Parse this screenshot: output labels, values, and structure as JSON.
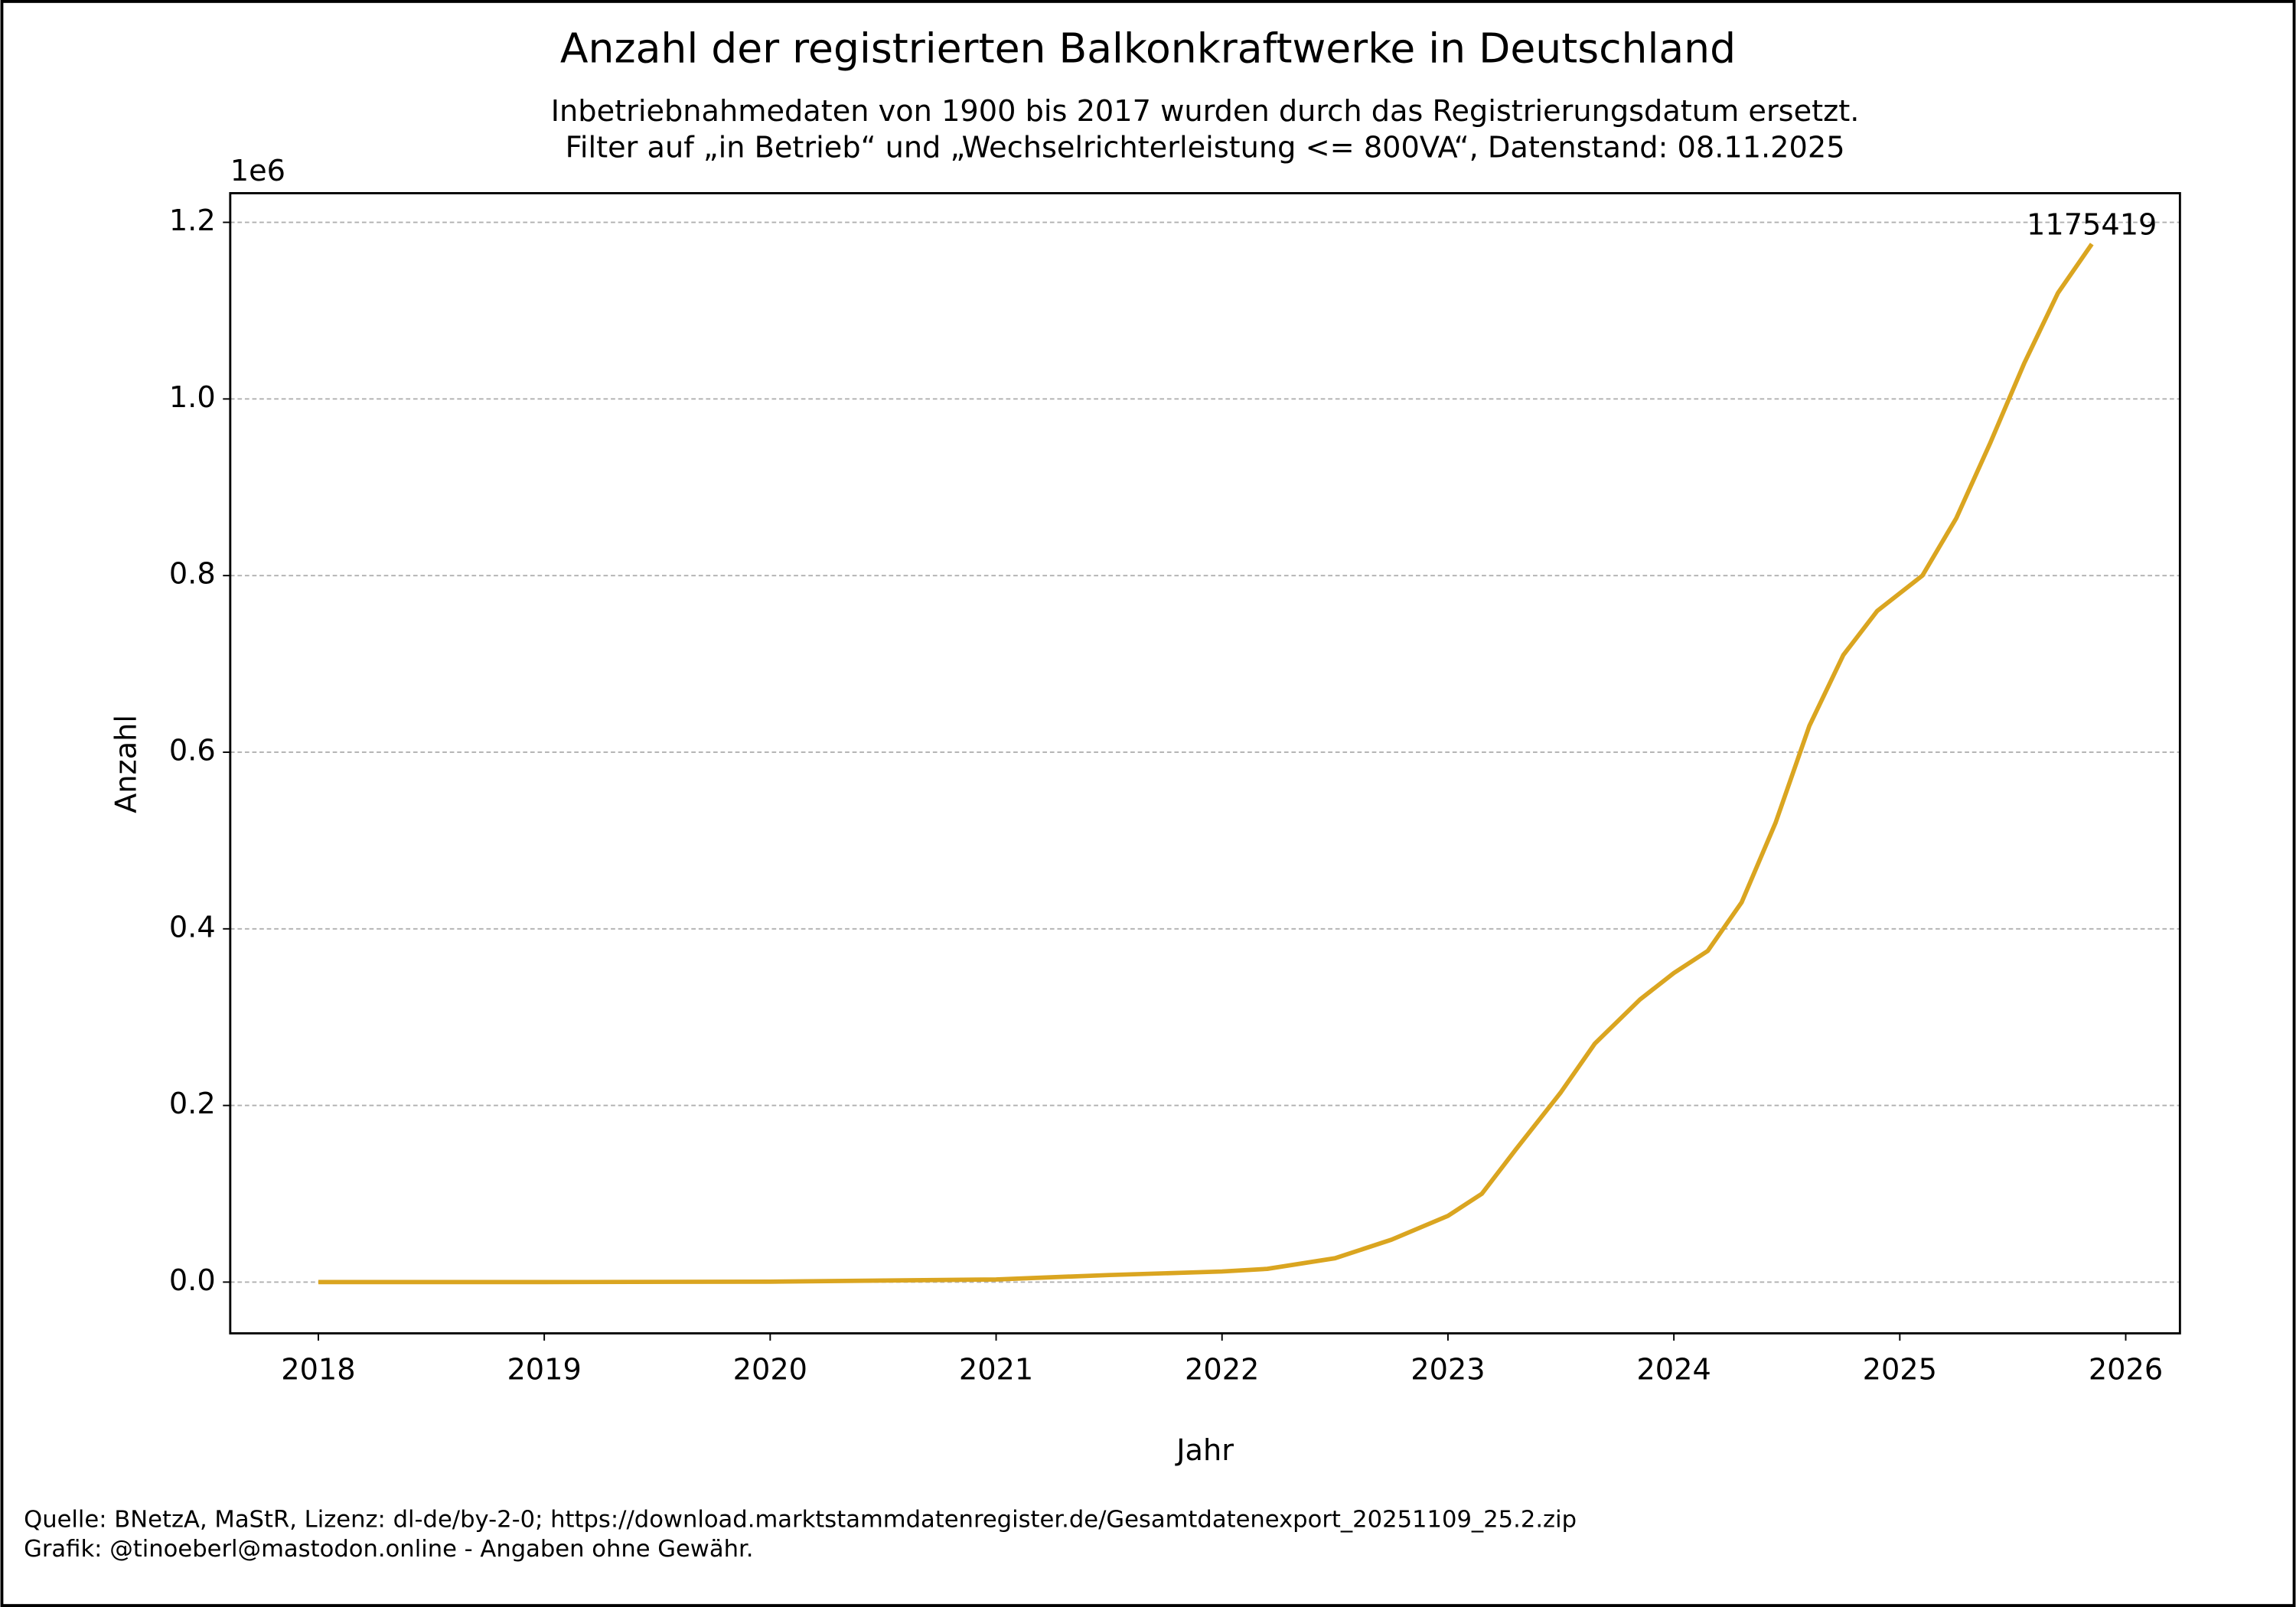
{
  "chart_data": {
    "type": "line",
    "title": "Anzahl der registrierten Balkonkraftwerke in Deutschland",
    "subtitle": [
      "Inbetriebnahmedaten von 1900 bis 2017 wurden durch das Registrierungsdatum ersetzt.",
      "Filter auf „in Betrieb“ und „Wechselrichterleistung <= 800VA“, Datenstand: 08.11.2025"
    ],
    "x_label": "Jahr",
    "y_label": "Anzahl",
    "y_offset_label": "1e6",
    "x": [
      2018.0,
      2019.0,
      2020.0,
      2021.0,
      2021.5,
      2022.0,
      2022.2,
      2022.5,
      2022.75,
      2023.0,
      2023.15,
      2023.3,
      2023.5,
      2023.65,
      2023.85,
      2024.0,
      2024.15,
      2024.3,
      2024.45,
      2024.6,
      2024.75,
      2024.9,
      2025.1,
      2025.25,
      2025.4,
      2025.55,
      2025.7,
      2025.85
    ],
    "series": [
      {
        "color": "#daa520",
        "values": [
          0,
          0,
          500,
          3000,
          8000,
          12000,
          15000,
          27000,
          48000,
          75000,
          100000,
          150000,
          215000,
          270000,
          320000,
          350000,
          375000,
          430000,
          520000,
          630000,
          710000,
          760000,
          800000,
          865000,
          950000,
          1040000,
          1120000,
          1175419
        ]
      }
    ],
    "xlim": [
      2017.61,
      2026.24
    ],
    "xticks": [
      2018,
      2019,
      2020,
      2021,
      2022,
      2023,
      2024,
      2025,
      2026
    ],
    "ylim": [
      -58000,
      1233000
    ],
    "yticks": [
      {
        "value": 0,
        "label": "0.0"
      },
      {
        "value": 200000,
        "label": "0.2"
      },
      {
        "value": 400000,
        "label": "0.4"
      },
      {
        "value": 600000,
        "label": "0.6"
      },
      {
        "value": 800000,
        "label": "0.8"
      },
      {
        "value": 1000000,
        "label": "1.0"
      },
      {
        "value": 1200000,
        "label": "1.2"
      }
    ],
    "grid": true,
    "footer": [
      "Quelle: BNetzA, MaStR, Lizenz: dl-de/by-2-0; https://download.marktstammdatenregister.de/Gesamtdatenexport_20251109_25.2.zip",
      "Grafik: @tinoeberl@mastodon.online - Angaben ohne Gewähr."
    ]
  }
}
